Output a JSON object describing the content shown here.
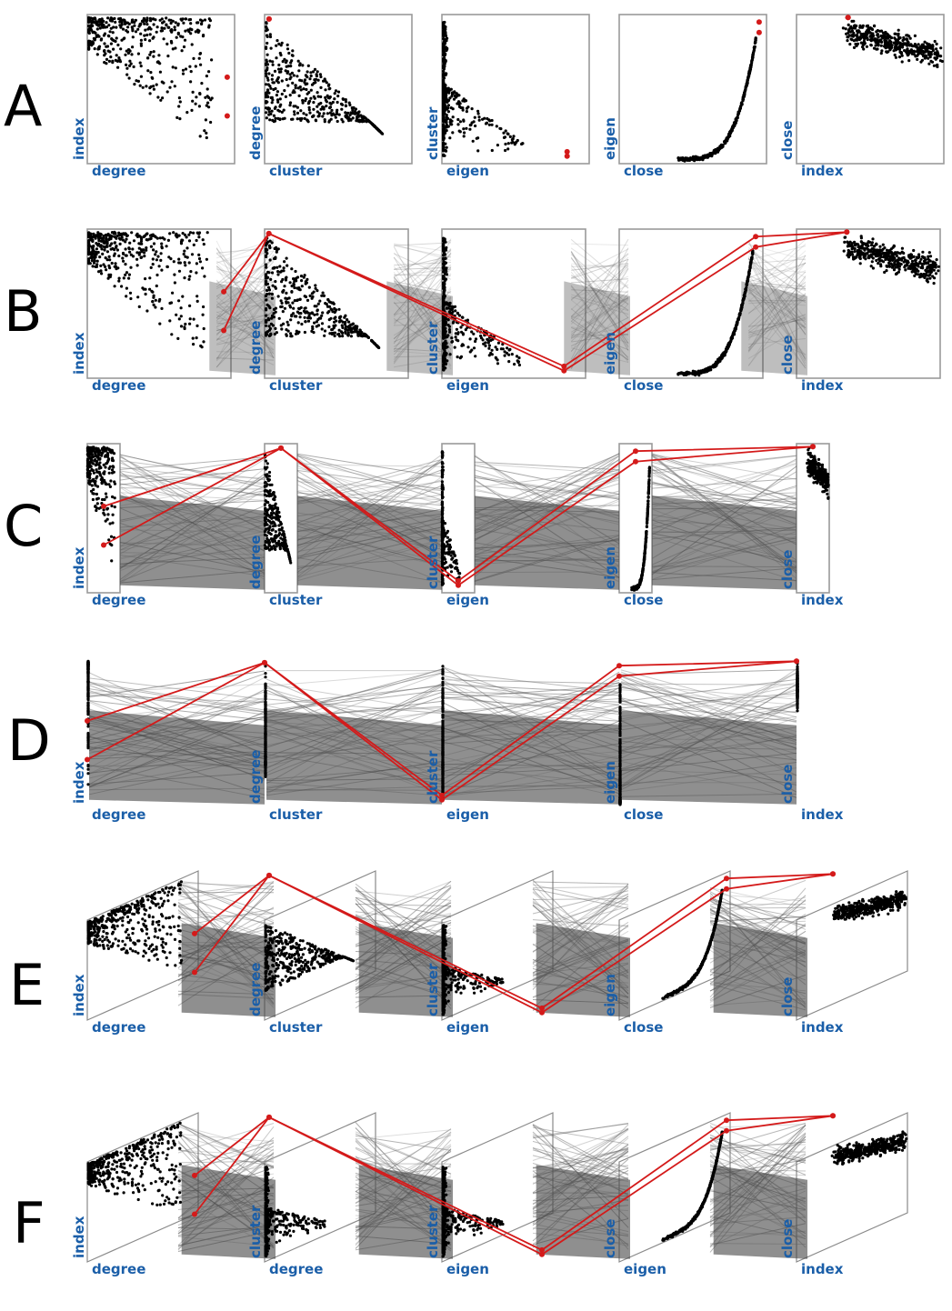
{
  "chart_data": [
    {
      "panel": "A",
      "type": "scatter",
      "plots": [
        {
          "x": "degree",
          "y": "index"
        },
        {
          "x": "cluster",
          "y": "degree"
        },
        {
          "x": "eigen",
          "y": "cluster"
        },
        {
          "x": "close",
          "y": "eigen"
        },
        {
          "x": "index",
          "y": "close"
        }
      ],
      "highlight_color": "#d41a1a"
    },
    {
      "panel": "B",
      "type": "scatter",
      "plots": [
        {
          "x": "degree",
          "y": "index"
        },
        {
          "x": "cluster",
          "y": "degree"
        },
        {
          "x": "eigen",
          "y": "cluster"
        },
        {
          "x": "close",
          "y": "eigen"
        },
        {
          "x": "index",
          "y": "close"
        }
      ],
      "highlight_color": "#d41a1a"
    },
    {
      "panel": "C",
      "type": "line",
      "plots": [
        {
          "x": "degree",
          "y": "index"
        },
        {
          "x": "cluster",
          "y": "degree"
        },
        {
          "x": "eigen",
          "y": "cluster"
        },
        {
          "x": "close",
          "y": "eigen"
        },
        {
          "x": "index",
          "y": "close"
        }
      ],
      "highlight_color": "#d41a1a"
    },
    {
      "panel": "D",
      "type": "line",
      "plots": [
        {
          "x": "degree",
          "y": "index"
        },
        {
          "x": "cluster",
          "y": "degree"
        },
        {
          "x": "eigen",
          "y": "cluster"
        },
        {
          "x": "close",
          "y": "eigen"
        },
        {
          "x": "index",
          "y": "close"
        }
      ],
      "highlight_color": "#d41a1a"
    },
    {
      "panel": "E",
      "type": "scatter",
      "plots": [
        {
          "x": "degree",
          "y": "index"
        },
        {
          "x": "cluster",
          "y": "degree"
        },
        {
          "x": "eigen",
          "y": "cluster"
        },
        {
          "x": "close",
          "y": "eigen"
        },
        {
          "x": "index",
          "y": "close"
        }
      ],
      "highlight_color": "#d41a1a"
    },
    {
      "panel": "F",
      "type": "scatter",
      "plots": [
        {
          "x": "degree",
          "y": "index"
        },
        {
          "x": "degree",
          "y": "cluster"
        },
        {
          "x": "eigen",
          "y": "cluster"
        },
        {
          "x": "eigen",
          "y": "close"
        },
        {
          "x": "index",
          "y": "close"
        }
      ],
      "highlight_color": "#d41a1a"
    }
  ]
}
